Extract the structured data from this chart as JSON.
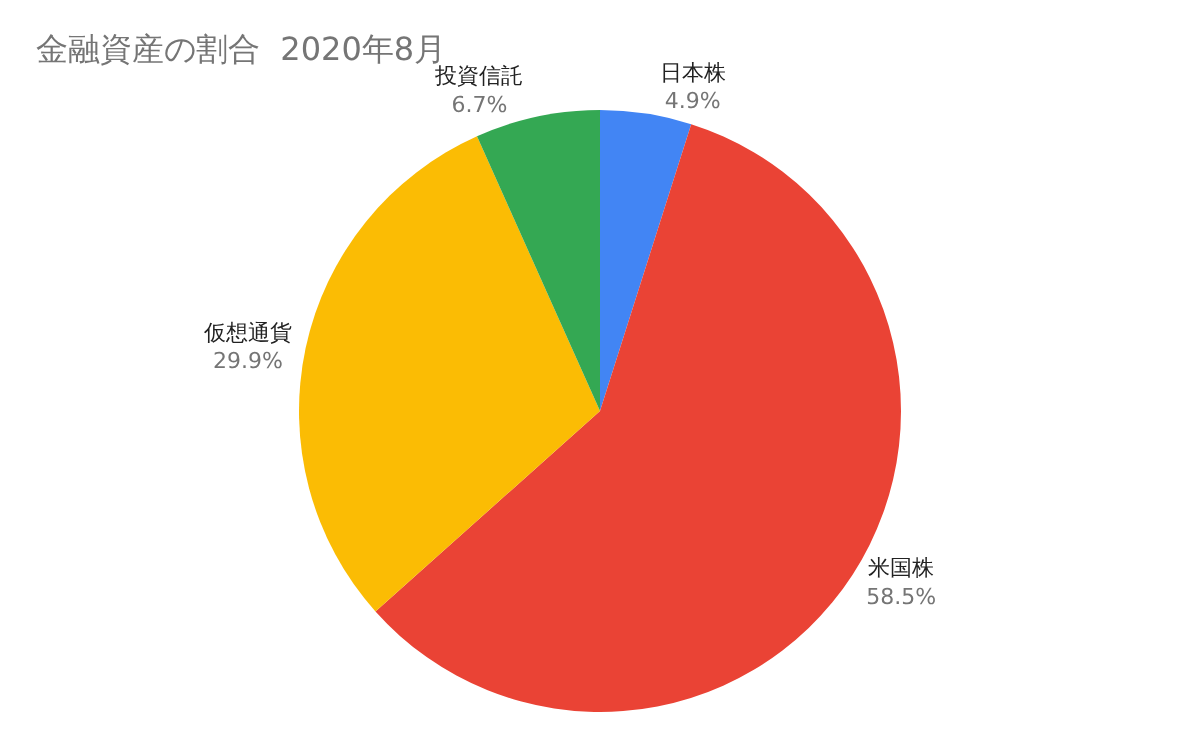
{
  "chart_data": {
    "type": "pie",
    "title": "金融資産の割合  2020年8月",
    "categories": [
      "日本株",
      "米国株",
      "仮想通貨",
      "投資信託"
    ],
    "values": [
      4.9,
      58.5,
      29.9,
      6.7
    ],
    "colors": [
      "#4285f4",
      "#ea4335",
      "#fbbc04",
      "#34a853"
    ],
    "value_labels": [
      "4.9%",
      "58.5%",
      "29.9%",
      "6.7%"
    ],
    "legend": false
  }
}
